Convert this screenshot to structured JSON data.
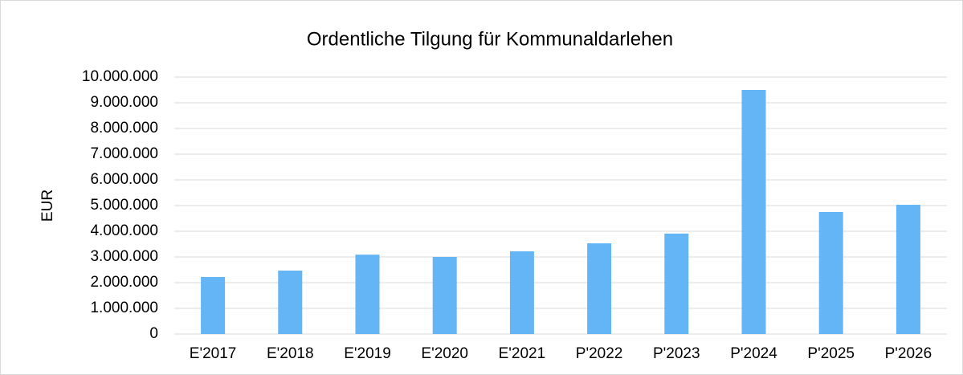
{
  "chart_data": {
    "type": "bar",
    "title": "Ordentliche Tilgung für Kommunaldarlehen",
    "y_label": "EUR",
    "categories": [
      "E'2017",
      "E'2018",
      "E'2019",
      "E'2020",
      "E'2021",
      "P'2022",
      "P'2023",
      "P'2024",
      "P'2025",
      "P'2026"
    ],
    "values": [
      2220000,
      2470000,
      3090000,
      3000000,
      3220000,
      3530000,
      3910000,
      9500000,
      4750000,
      5030000
    ],
    "color": "#63b5f6",
    "ylim": [
      0,
      10000000
    ],
    "yticks": [
      0,
      {
        "value": 1000000,
        "label": "1.000.000"
      },
      {
        "value": 2000000,
        "label": "2.000.000"
      },
      {
        "value": 3000000,
        "label": "3.000.000"
      },
      {
        "value": 4000000,
        "label": "4.000.000"
      },
      {
        "value": 5000000,
        "label": "5.000.000"
      },
      {
        "value": 6000000,
        "label": "6.000.000"
      },
      {
        "value": 7000000,
        "label": "7.000.000"
      },
      {
        "value": 8000000,
        "label": "8.000.000"
      },
      {
        "value": 9000000,
        "label": "9.000.000"
      },
      {
        "value": 10000000,
        "label": "10.000.000"
      }
    ],
    "grid": true
  }
}
